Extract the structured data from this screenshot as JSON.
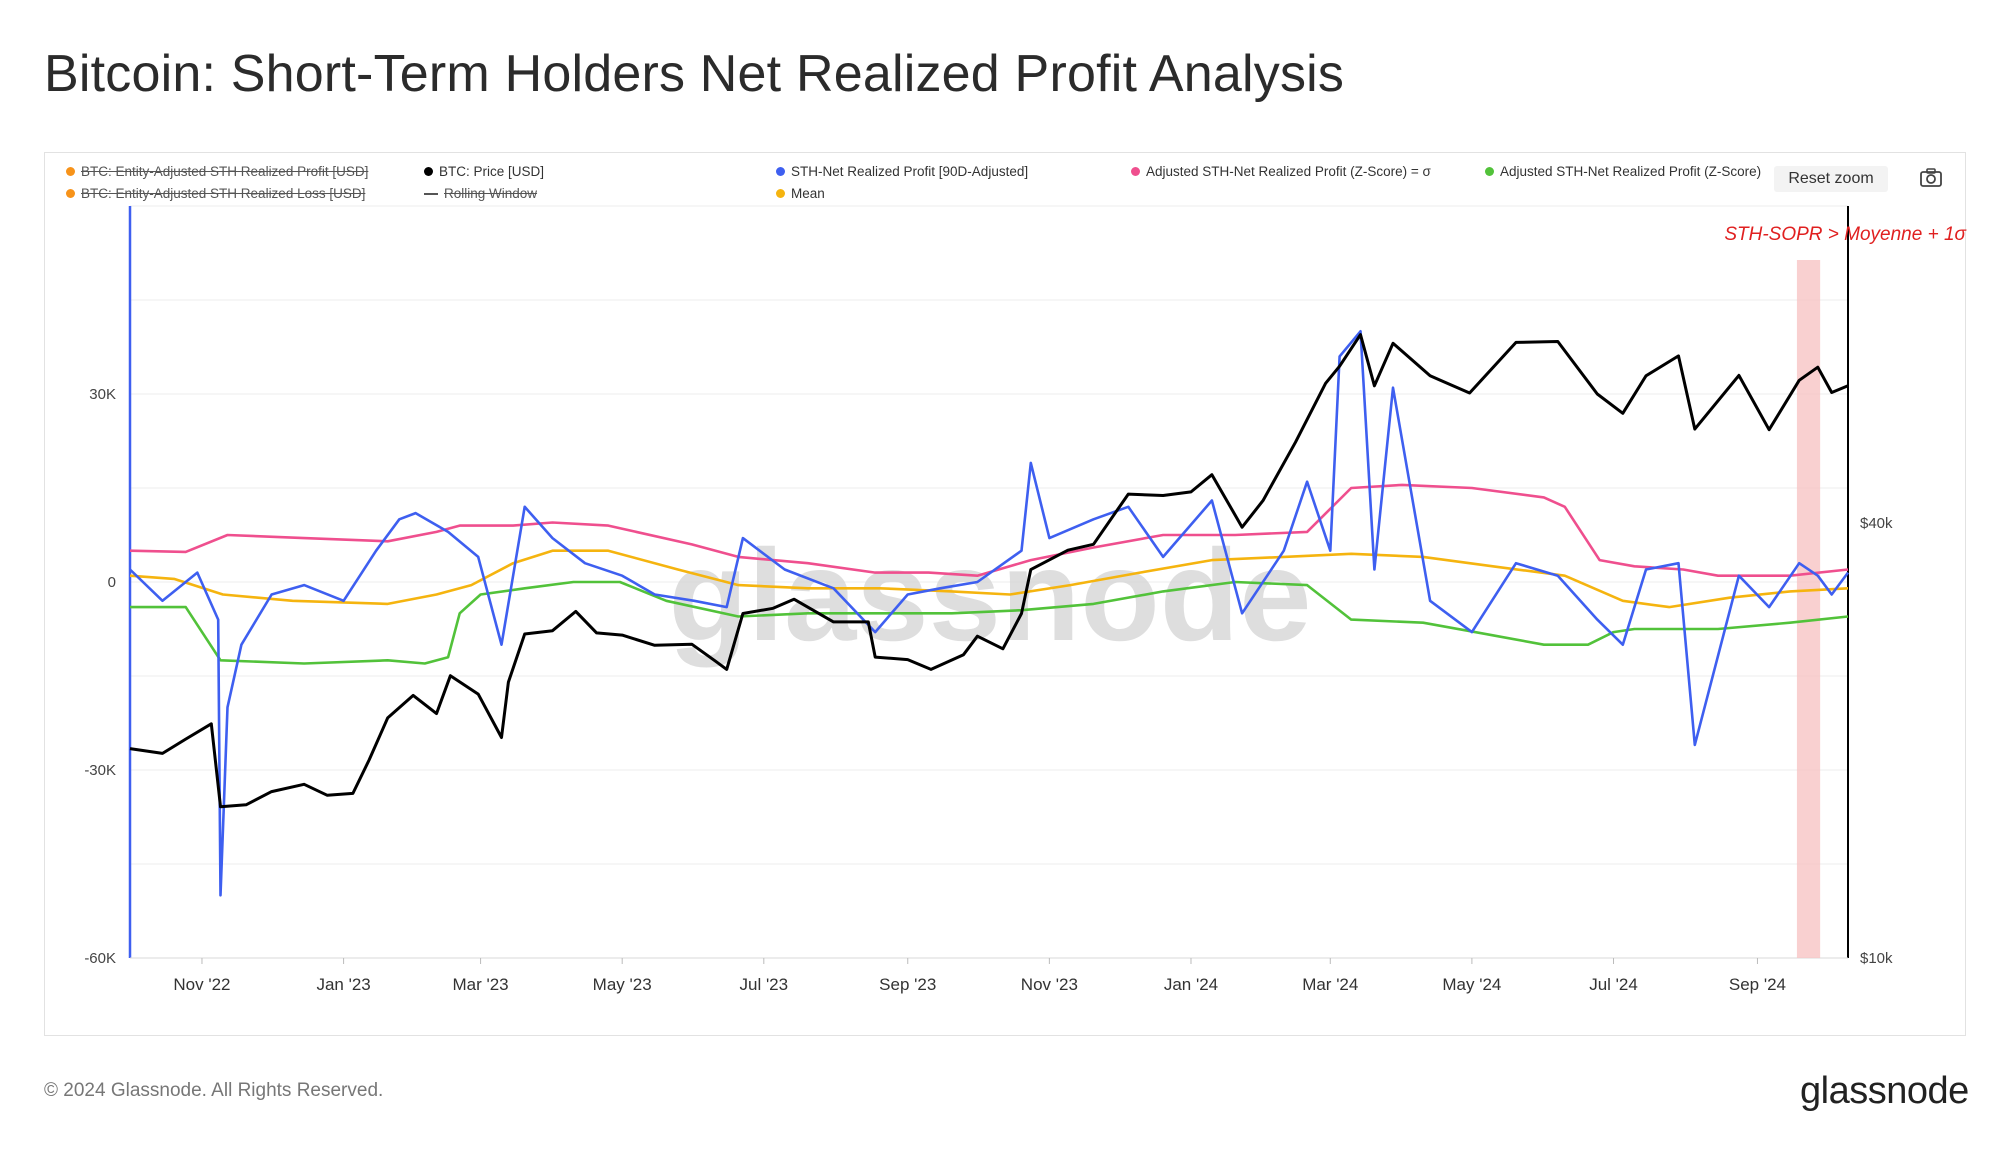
{
  "title": "Bitcoin: Short-Term Holders Net Realized Profit Analysis",
  "toolbar": {
    "reset_zoom": "Reset zoom"
  },
  "legend": [
    {
      "label": "BTC: Entity-Adjusted STH Realized Profit [USD]",
      "color": "#f7931a",
      "marker": "dot",
      "disabled": true
    },
    {
      "label": "BTC: Entity-Adjusted STH Realized Loss [USD]",
      "color": "#f7931a",
      "marker": "dot",
      "disabled": true
    },
    {
      "label": "BTC: Price [USD]",
      "color": "#000000",
      "marker": "dot",
      "disabled": false
    },
    {
      "label": "Rolling Window",
      "color": "#555555",
      "marker": "dash",
      "disabled": true
    },
    {
      "label": "STH-Net Realized Profit [90D-Adjusted]",
      "color": "#3e5ff0",
      "marker": "dot",
      "disabled": false
    },
    {
      "label": "Mean",
      "color": "#f5b40f",
      "marker": "dot",
      "disabled": false
    },
    {
      "label": "Adjusted STH-Net Realized Profit (Z-Score) = σ",
      "color": "#ef4f8e",
      "marker": "dot",
      "disabled": false
    },
    {
      "label": "Adjusted STH-Net Realized Profit (Z-Score)",
      "color": "#52c23a",
      "marker": "dot",
      "disabled": false
    }
  ],
  "annotation": "STH-SOPR > Moyenne + 1σ",
  "watermark": "glassnode",
  "footer": {
    "copyright": "© 2024 Glassnode. All Rights Reserved.",
    "brand": "glassnode"
  },
  "chart_data": {
    "type": "line",
    "x_range": [
      "2022-10-01",
      "2024-10-10"
    ],
    "x_ticks": [
      {
        "date": "2022-11-01",
        "label": "Nov '22"
      },
      {
        "date": "2023-01-01",
        "label": "Jan '23"
      },
      {
        "date": "2023-03-01",
        "label": "Mar '23"
      },
      {
        "date": "2023-05-01",
        "label": "May '23"
      },
      {
        "date": "2023-07-01",
        "label": "Jul '23"
      },
      {
        "date": "2023-09-01",
        "label": "Sep '23"
      },
      {
        "date": "2023-11-01",
        "label": "Nov '23"
      },
      {
        "date": "2024-01-01",
        "label": "Jan '24"
      },
      {
        "date": "2024-03-01",
        "label": "Mar '24"
      },
      {
        "date": "2024-05-01",
        "label": "May '24"
      },
      {
        "date": "2024-07-01",
        "label": "Jul '24"
      },
      {
        "date": "2024-09-01",
        "label": "Sep '24"
      }
    ],
    "y_left": {
      "range": [
        -60000,
        60000
      ],
      "ticks": [
        30000,
        0,
        -30000,
        -60000
      ],
      "tick_labels": [
        "30K",
        "0",
        "-30K",
        "-60K"
      ]
    },
    "y_right": {
      "scale": "log",
      "range": [
        10000,
        110000
      ],
      "ticks": [
        40000,
        10000
      ],
      "tick_labels": [
        "$40k",
        "$10k"
      ]
    },
    "highlight": {
      "from": "2024-09-18",
      "to": "2024-09-28",
      "color": "#f8c4c4"
    },
    "grid": true,
    "series": [
      {
        "name": "BTC: Price [USD]",
        "color": "#000000",
        "axis": "right",
        "points": [
          [
            "2022-10-01",
            19500
          ],
          [
            "2022-10-15",
            19200
          ],
          [
            "2022-10-25",
            20100
          ],
          [
            "2022-11-05",
            21100
          ],
          [
            "2022-11-09",
            16200
          ],
          [
            "2022-11-20",
            16300
          ],
          [
            "2022-12-01",
            17000
          ],
          [
            "2022-12-15",
            17400
          ],
          [
            "2022-12-25",
            16800
          ],
          [
            "2023-01-05",
            16900
          ],
          [
            "2023-01-12",
            18800
          ],
          [
            "2023-01-20",
            21500
          ],
          [
            "2023-01-31",
            23100
          ],
          [
            "2023-02-10",
            21800
          ],
          [
            "2023-02-16",
            24600
          ],
          [
            "2023-02-28",
            23200
          ],
          [
            "2023-03-10",
            20200
          ],
          [
            "2023-03-13",
            24100
          ],
          [
            "2023-03-20",
            28100
          ],
          [
            "2023-04-01",
            28400
          ],
          [
            "2023-04-11",
            30200
          ],
          [
            "2023-04-20",
            28200
          ],
          [
            "2023-05-01",
            28000
          ],
          [
            "2023-05-15",
            27100
          ],
          [
            "2023-05-31",
            27200
          ],
          [
            "2023-06-10",
            25800
          ],
          [
            "2023-06-15",
            25100
          ],
          [
            "2023-06-22",
            30000
          ],
          [
            "2023-07-05",
            30500
          ],
          [
            "2023-07-14",
            31400
          ],
          [
            "2023-07-31",
            29200
          ],
          [
            "2023-08-15",
            29200
          ],
          [
            "2023-08-18",
            26100
          ],
          [
            "2023-09-01",
            25900
          ],
          [
            "2023-09-11",
            25100
          ],
          [
            "2023-09-25",
            26300
          ],
          [
            "2023-10-01",
            27900
          ],
          [
            "2023-10-12",
            26800
          ],
          [
            "2023-10-20",
            30000
          ],
          [
            "2023-10-24",
            34500
          ],
          [
            "2023-11-09",
            36700
          ],
          [
            "2023-11-20",
            37400
          ],
          [
            "2023-12-05",
            43900
          ],
          [
            "2023-12-20",
            43700
          ],
          [
            "2024-01-01",
            44200
          ],
          [
            "2024-01-10",
            46700
          ],
          [
            "2024-01-23",
            39500
          ],
          [
            "2024-02-01",
            43000
          ],
          [
            "2024-02-15",
            51800
          ],
          [
            "2024-02-28",
            62500
          ],
          [
            "2024-03-05",
            66000
          ],
          [
            "2024-03-14",
            73000
          ],
          [
            "2024-03-20",
            62000
          ],
          [
            "2024-03-28",
            71000
          ],
          [
            "2024-04-13",
            64000
          ],
          [
            "2024-04-30",
            60600
          ],
          [
            "2024-05-20",
            71200
          ],
          [
            "2024-06-07",
            71400
          ],
          [
            "2024-06-24",
            60400
          ],
          [
            "2024-07-05",
            56800
          ],
          [
            "2024-07-15",
            64000
          ],
          [
            "2024-07-29",
            68200
          ],
          [
            "2024-08-05",
            54000
          ],
          [
            "2024-08-24",
            64100
          ],
          [
            "2024-09-06",
            53900
          ],
          [
            "2024-09-19",
            63100
          ],
          [
            "2024-09-27",
            65800
          ],
          [
            "2024-10-03",
            60700
          ],
          [
            "2024-10-10",
            62000
          ]
        ]
      },
      {
        "name": "STH-Net Realized Profit [90D-Adjusted]",
        "color": "#3e5ff0",
        "axis": "left",
        "points": [
          [
            "2022-10-01",
            2000
          ],
          [
            "2022-10-15",
            -3000
          ],
          [
            "2022-10-30",
            1500
          ],
          [
            "2022-11-08",
            -6000
          ],
          [
            "2022-11-09",
            -50000
          ],
          [
            "2022-11-12",
            -20000
          ],
          [
            "2022-11-18",
            -10000
          ],
          [
            "2022-12-01",
            -2000
          ],
          [
            "2022-12-15",
            -500
          ],
          [
            "2023-01-01",
            -3000
          ],
          [
            "2023-01-15",
            5000
          ],
          [
            "2023-01-25",
            10000
          ],
          [
            "2023-02-01",
            11000
          ],
          [
            "2023-02-15",
            8000
          ],
          [
            "2023-02-28",
            4000
          ],
          [
            "2023-03-10",
            -10000
          ],
          [
            "2023-03-20",
            12000
          ],
          [
            "2023-04-01",
            7000
          ],
          [
            "2023-04-15",
            3000
          ],
          [
            "2023-05-01",
            1000
          ],
          [
            "2023-05-15",
            -2000
          ],
          [
            "2023-06-01",
            -3000
          ],
          [
            "2023-06-15",
            -4000
          ],
          [
            "2023-06-22",
            7000
          ],
          [
            "2023-07-10",
            2000
          ],
          [
            "2023-07-31",
            -1000
          ],
          [
            "2023-08-18",
            -8000
          ],
          [
            "2023-09-01",
            -2000
          ],
          [
            "2023-09-15",
            -1000
          ],
          [
            "2023-10-01",
            0
          ],
          [
            "2023-10-20",
            5000
          ],
          [
            "2023-10-24",
            19000
          ],
          [
            "2023-11-01",
            7000
          ],
          [
            "2023-11-20",
            10000
          ],
          [
            "2023-12-05",
            12000
          ],
          [
            "2023-12-20",
            4000
          ],
          [
            "2024-01-10",
            13000
          ],
          [
            "2024-01-23",
            -5000
          ],
          [
            "2024-02-10",
            5000
          ],
          [
            "2024-02-20",
            16000
          ],
          [
            "2024-03-01",
            5000
          ],
          [
            "2024-03-05",
            36000
          ],
          [
            "2024-03-14",
            40000
          ],
          [
            "2024-03-20",
            2000
          ],
          [
            "2024-03-28",
            31000
          ],
          [
            "2024-04-13",
            -3000
          ],
          [
            "2024-05-01",
            -8000
          ],
          [
            "2024-05-20",
            3000
          ],
          [
            "2024-06-07",
            1000
          ],
          [
            "2024-06-24",
            -6000
          ],
          [
            "2024-07-05",
            -10000
          ],
          [
            "2024-07-15",
            2000
          ],
          [
            "2024-07-29",
            3000
          ],
          [
            "2024-08-05",
            -26000
          ],
          [
            "2024-08-24",
            1000
          ],
          [
            "2024-09-06",
            -4000
          ],
          [
            "2024-09-19",
            3000
          ],
          [
            "2024-09-27",
            1000
          ],
          [
            "2024-10-03",
            -2000
          ],
          [
            "2024-10-10",
            1500
          ]
        ]
      },
      {
        "name": "Adjusted STH-Net Realized Profit (Z-Score) = σ",
        "color": "#ef4f8e",
        "axis": "left",
        "points": [
          [
            "2022-10-01",
            5000
          ],
          [
            "2022-10-25",
            4800
          ],
          [
            "2022-11-12",
            7500
          ],
          [
            "2022-12-15",
            7000
          ],
          [
            "2023-01-20",
            6500
          ],
          [
            "2023-02-10",
            8000
          ],
          [
            "2023-02-20",
            9000
          ],
          [
            "2023-03-15",
            9000
          ],
          [
            "2023-04-01",
            9500
          ],
          [
            "2023-04-25",
            9000
          ],
          [
            "2023-05-31",
            6000
          ],
          [
            "2023-06-20",
            4000
          ],
          [
            "2023-07-20",
            3000
          ],
          [
            "2023-08-18",
            1500
          ],
          [
            "2023-09-10",
            1500
          ],
          [
            "2023-10-01",
            1000
          ],
          [
            "2023-10-24",
            3500
          ],
          [
            "2023-11-20",
            5500
          ],
          [
            "2023-12-20",
            7500
          ],
          [
            "2024-01-20",
            7500
          ],
          [
            "2024-02-20",
            8000
          ],
          [
            "2024-03-10",
            15000
          ],
          [
            "2024-04-01",
            15500
          ],
          [
            "2024-05-01",
            15000
          ],
          [
            "2024-06-01",
            13500
          ],
          [
            "2024-06-10",
            12000
          ],
          [
            "2024-06-25",
            3500
          ],
          [
            "2024-07-10",
            2500
          ],
          [
            "2024-07-31",
            2000
          ],
          [
            "2024-08-15",
            1000
          ],
          [
            "2024-09-15",
            1000
          ],
          [
            "2024-10-10",
            2000
          ]
        ]
      },
      {
        "name": "Mean",
        "color": "#f5b40f",
        "axis": "left",
        "points": [
          [
            "2022-10-01",
            1000
          ],
          [
            "2022-10-20",
            500
          ],
          [
            "2022-11-10",
            -2000
          ],
          [
            "2022-12-10",
            -3000
          ],
          [
            "2023-01-20",
            -3500
          ],
          [
            "2023-02-10",
            -2000
          ],
          [
            "2023-02-25",
            -500
          ],
          [
            "2023-03-15",
            3000
          ],
          [
            "2023-04-01",
            5000
          ],
          [
            "2023-04-25",
            5000
          ],
          [
            "2023-05-25",
            2000
          ],
          [
            "2023-06-20",
            -500
          ],
          [
            "2023-07-20",
            -1000
          ],
          [
            "2023-08-20",
            -1000
          ],
          [
            "2023-09-20",
            -1500
          ],
          [
            "2023-10-15",
            -2000
          ],
          [
            "2023-11-10",
            -500
          ],
          [
            "2023-12-10",
            1500
          ],
          [
            "2024-01-10",
            3500
          ],
          [
            "2024-02-10",
            4000
          ],
          [
            "2024-03-10",
            4500
          ],
          [
            "2024-04-10",
            4000
          ],
          [
            "2024-05-10",
            2500
          ],
          [
            "2024-06-10",
            1000
          ],
          [
            "2024-07-05",
            -3000
          ],
          [
            "2024-07-25",
            -4000
          ],
          [
            "2024-08-20",
            -2500
          ],
          [
            "2024-09-15",
            -1500
          ],
          [
            "2024-10-10",
            -1000
          ]
        ]
      },
      {
        "name": "Adjusted STH-Net Realized Profit (Z-Score)",
        "color": "#52c23a",
        "axis": "left",
        "points": [
          [
            "2022-10-01",
            -4000
          ],
          [
            "2022-10-25",
            -4000
          ],
          [
            "2022-11-09",
            -12500
          ],
          [
            "2022-12-15",
            -13000
          ],
          [
            "2023-01-20",
            -12500
          ],
          [
            "2023-02-05",
            -13000
          ],
          [
            "2023-02-15",
            -12000
          ],
          [
            "2023-02-20",
            -5000
          ],
          [
            "2023-03-01",
            -2000
          ],
          [
            "2023-03-20",
            -1000
          ],
          [
            "2023-04-10",
            0
          ],
          [
            "2023-04-30",
            0
          ],
          [
            "2023-05-20",
            -3000
          ],
          [
            "2023-06-20",
            -5500
          ],
          [
            "2023-07-20",
            -5000
          ],
          [
            "2023-08-20",
            -5000
          ],
          [
            "2023-09-20",
            -5000
          ],
          [
            "2023-10-20",
            -4500
          ],
          [
            "2023-11-20",
            -3500
          ],
          [
            "2023-12-20",
            -1500
          ],
          [
            "2024-01-20",
            0
          ],
          [
            "2024-02-20",
            -500
          ],
          [
            "2024-03-10",
            -6000
          ],
          [
            "2024-04-10",
            -6500
          ],
          [
            "2024-05-10",
            -8500
          ],
          [
            "2024-06-01",
            -10000
          ],
          [
            "2024-06-20",
            -10000
          ],
          [
            "2024-07-01",
            -8000
          ],
          [
            "2024-07-10",
            -7500
          ],
          [
            "2024-08-15",
            -7500
          ],
          [
            "2024-09-15",
            -6500
          ],
          [
            "2024-10-10",
            -5500
          ]
        ]
      }
    ]
  }
}
